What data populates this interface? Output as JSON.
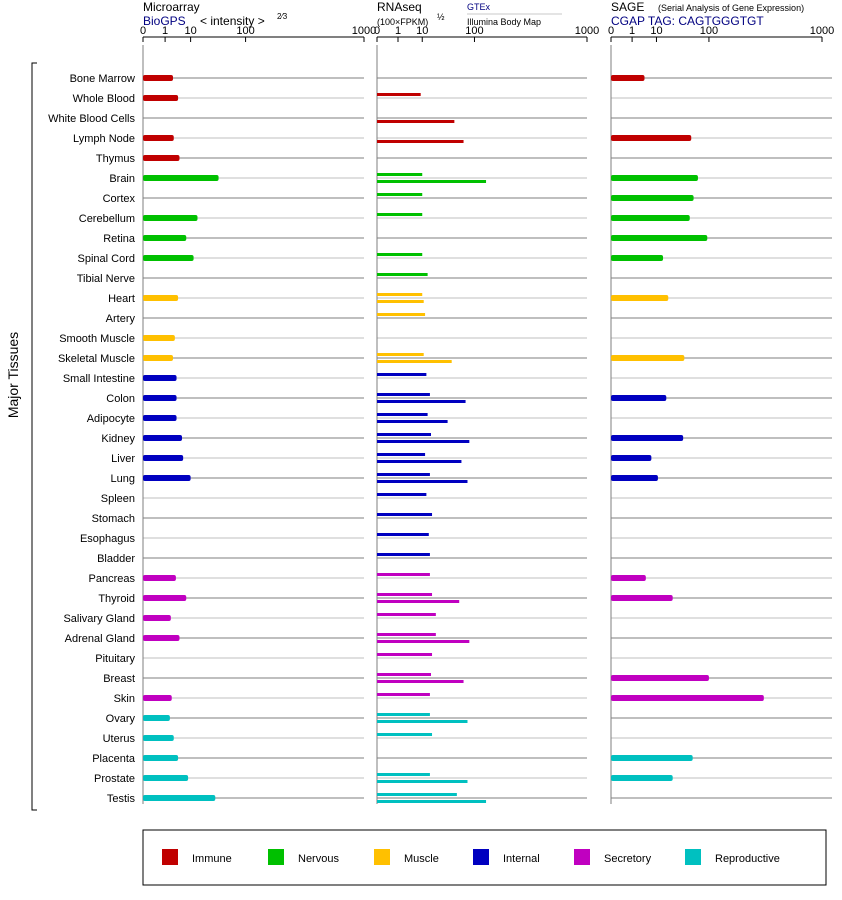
{
  "panels": {
    "microarray": {
      "title": "Microarray",
      "subtitle": "BioGPS",
      "scale_label": "< intensity >",
      "scale_power": "2⁄3"
    },
    "rnaseq": {
      "title": "RNAseq",
      "scale_label": "(100×FPKM)",
      "scale_power": "½",
      "source1": "GTEx",
      "source2": "Illumina Body Map"
    },
    "sage": {
      "title": "SAGE",
      "title_note": "(Serial Analysis of Gene Expression)",
      "subtitle": "CGAP TAG: CAGTGGGTGT"
    }
  },
  "y_axis_label": "Major Tissues",
  "colors": {
    "Immune": "#c00000",
    "Nervous": "#00c000",
    "Muscle": "#ffc000",
    "Internal": "#0000c0",
    "Secretory": "#c000c0",
    "Reproductive": "#00c0c0"
  },
  "chart_data": {
    "type": "bar",
    "x_scale": "power",
    "x_ticks": [
      "0",
      "1",
      "10",
      "100",
      "1000"
    ],
    "tick_values": [
      0,
      1,
      10,
      100,
      1000
    ],
    "xlim": [
      0,
      1000
    ],
    "legend": [
      "Immune",
      "Nervous",
      "Muscle",
      "Internal",
      "Secretory",
      "Reproductive"
    ],
    "tissues": [
      {
        "name": "Bone Marrow",
        "group": "Immune",
        "microarray": 2.5,
        "gtex": null,
        "ibm": null,
        "sage": 4
      },
      {
        "name": "Whole Blood",
        "group": "Immune",
        "microarray": 4,
        "gtex": 9,
        "ibm": null,
        "sage": null
      },
      {
        "name": "White Blood Cells",
        "group": "Immune",
        "microarray": null,
        "gtex": null,
        "ibm": 50,
        "sage": null
      },
      {
        "name": "Lymph Node",
        "group": "Immune",
        "microarray": 2.7,
        "gtex": null,
        "ibm": 70,
        "sage": 55
      },
      {
        "name": "Thymus",
        "group": "Immune",
        "microarray": 4.5,
        "gtex": null,
        "ibm": null,
        "sage": null
      },
      {
        "name": "Brain",
        "group": "Nervous",
        "microarray": 40,
        "gtex": 10,
        "ibm": 140,
        "sage": 70
      },
      {
        "name": "Cortex",
        "group": "Nervous",
        "microarray": null,
        "gtex": 10,
        "ibm": null,
        "sage": 60
      },
      {
        "name": "Cerebellum",
        "group": "Nervous",
        "microarray": 15,
        "gtex": 10,
        "ibm": null,
        "sage": 52
      },
      {
        "name": "Retina",
        "group": "Nervous",
        "microarray": 7.5,
        "gtex": null,
        "ibm": null,
        "sage": 95
      },
      {
        "name": "Spinal Cord",
        "group": "Nervous",
        "microarray": 12,
        "gtex": 10,
        "ibm": null,
        "sage": 15
      },
      {
        "name": "Tibial Nerve",
        "group": "Nervous",
        "microarray": null,
        "gtex": 14,
        "ibm": null,
        "sage": null
      },
      {
        "name": "Heart",
        "group": "Muscle",
        "microarray": 4,
        "gtex": 10,
        "ibm": 11,
        "sage": 20
      },
      {
        "name": "Artery",
        "group": "Muscle",
        "microarray": null,
        "gtex": 12,
        "ibm": null,
        "sage": null
      },
      {
        "name": "Smooth Muscle",
        "group": "Muscle",
        "microarray": 3,
        "gtex": null,
        "ibm": null,
        "sage": null
      },
      {
        "name": "Skeletal Muscle",
        "group": "Muscle",
        "microarray": 2.5,
        "gtex": 11,
        "ibm": 45,
        "sage": 42
      },
      {
        "name": "Small Intestine",
        "group": "Internal",
        "microarray": 3.5,
        "gtex": 13,
        "ibm": null,
        "sage": null
      },
      {
        "name": "Colon",
        "group": "Internal",
        "microarray": 3.5,
        "gtex": 16,
        "ibm": 75,
        "sage": 18
      },
      {
        "name": "Adipocyte",
        "group": "Internal",
        "microarray": 3.5,
        "gtex": 14,
        "ibm": 38,
        "sage": null
      },
      {
        "name": "Kidney",
        "group": "Internal",
        "microarray": 5.5,
        "gtex": 17,
        "ibm": 85,
        "sage": 40
      },
      {
        "name": "Liver",
        "group": "Internal",
        "microarray": 6,
        "gtex": 12,
        "ibm": 65,
        "sage": 7
      },
      {
        "name": "Lung",
        "group": "Internal",
        "microarray": 10,
        "gtex": 16,
        "ibm": 80,
        "sage": 11
      },
      {
        "name": "Spleen",
        "group": "Internal",
        "microarray": null,
        "gtex": 13,
        "ibm": null,
        "sage": null
      },
      {
        "name": "Stomach",
        "group": "Internal",
        "microarray": null,
        "gtex": 18,
        "ibm": null,
        "sage": null
      },
      {
        "name": "Esophagus",
        "group": "Internal",
        "microarray": null,
        "gtex": 15,
        "ibm": null,
        "sage": null
      },
      {
        "name": "Bladder",
        "group": "Internal",
        "microarray": null,
        "gtex": 16,
        "ibm": null,
        "sage": null
      },
      {
        "name": "Pancreas",
        "group": "Secretory",
        "microarray": 3.3,
        "gtex": 16,
        "ibm": null,
        "sage": 4.5
      },
      {
        "name": "Thyroid",
        "group": "Secretory",
        "microarray": 7.5,
        "gtex": 18,
        "ibm": 60,
        "sage": 25
      },
      {
        "name": "Salivary Gland",
        "group": "Secretory",
        "microarray": 2,
        "gtex": 22,
        "ibm": null,
        "sage": null
      },
      {
        "name": "Adrenal Gland",
        "group": "Secretory",
        "microarray": 4.5,
        "gtex": 22,
        "ibm": 85,
        "sage": null
      },
      {
        "name": "Pituitary",
        "group": "Secretory",
        "microarray": null,
        "gtex": 18,
        "ibm": null,
        "sage": null
      },
      {
        "name": "Breast",
        "group": "Secretory",
        "microarray": null,
        "gtex": 17,
        "ibm": 70,
        "sage": 100
      },
      {
        "name": "Skin",
        "group": "Secretory",
        "microarray": 2.2,
        "gtex": 16,
        "ibm": null,
        "sage": 380
      },
      {
        "name": "Ovary",
        "group": "Reproductive",
        "microarray": 1.8,
        "gtex": 16,
        "ibm": 80,
        "sage": null
      },
      {
        "name": "Uterus",
        "group": "Reproductive",
        "microarray": 2.7,
        "gtex": 18,
        "ibm": null,
        "sage": null
      },
      {
        "name": "Placenta",
        "group": "Reproductive",
        "microarray": 4,
        "gtex": null,
        "ibm": null,
        "sage": 58
      },
      {
        "name": "Prostate",
        "group": "Reproductive",
        "microarray": 8.5,
        "gtex": 16,
        "ibm": 80,
        "sage": 25
      },
      {
        "name": "Testis",
        "group": "Reproductive",
        "microarray": 35,
        "gtex": 55,
        "ibm": 140,
        "sage": null
      }
    ]
  }
}
